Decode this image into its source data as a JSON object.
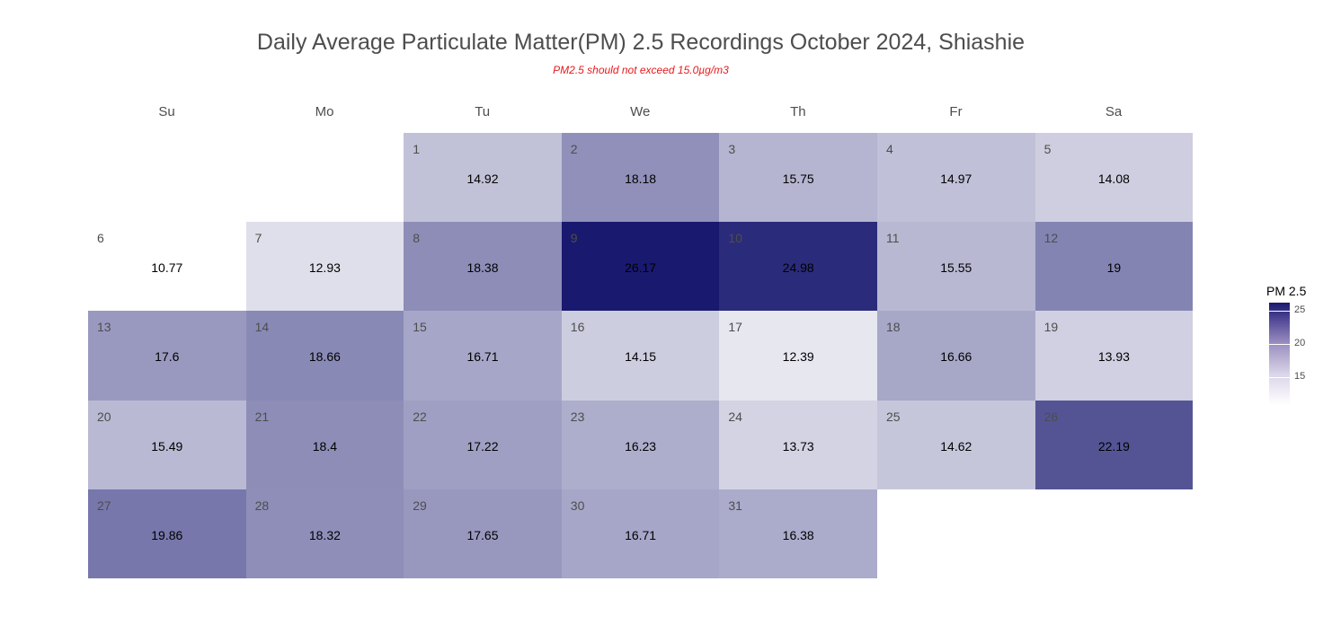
{
  "chart_data": {
    "type": "heatmap",
    "title": "Daily Average Particulate Matter(PM) 2.5 Recordings October 2024,  Shiashie",
    "subtitle": "PM2.5 should not exceed 15.0µg/m3",
    "weekdays": [
      "Su",
      "Mo",
      "Tu",
      "We",
      "Th",
      "Fr",
      "Sa"
    ],
    "first_weekday_index": 2,
    "days": [
      1,
      2,
      3,
      4,
      5,
      6,
      7,
      8,
      9,
      10,
      11,
      12,
      13,
      14,
      15,
      16,
      17,
      18,
      19,
      20,
      21,
      22,
      23,
      24,
      25,
      26,
      27,
      28,
      29,
      30,
      31
    ],
    "values": [
      14.92,
      18.18,
      15.75,
      14.97,
      14.08,
      10.77,
      12.93,
      18.38,
      26.17,
      24.98,
      15.55,
      19,
      17.6,
      18.66,
      16.71,
      14.15,
      12.39,
      16.66,
      13.93,
      15.49,
      18.4,
      17.22,
      16.23,
      13.73,
      14.62,
      22.19,
      19.86,
      18.32,
      17.65,
      16.71,
      16.38
    ],
    "value_labels": [
      "14.92",
      "18.18",
      "15.75",
      "14.97",
      "14.08",
      "10.77",
      "12.93",
      "18.38",
      "26.17",
      "24.98",
      "15.55",
      "19",
      "17.6",
      "18.66",
      "16.71",
      "14.15",
      "12.39",
      "16.66",
      "13.93",
      "15.49",
      "18.4",
      "17.22",
      "16.23",
      "13.73",
      "14.62",
      "22.19",
      "19.86",
      "18.32",
      "17.65",
      "16.71",
      "16.38"
    ],
    "legend": {
      "title": "PM 2.5",
      "ticks": [
        15,
        20,
        25
      ],
      "tick_labels": [
        "15",
        "20",
        "25"
      ],
      "range": [
        10.77,
        26.17
      ],
      "low_color": "#ffffff",
      "high_color": "#191970",
      "placement": "right"
    },
    "grid": false
  }
}
